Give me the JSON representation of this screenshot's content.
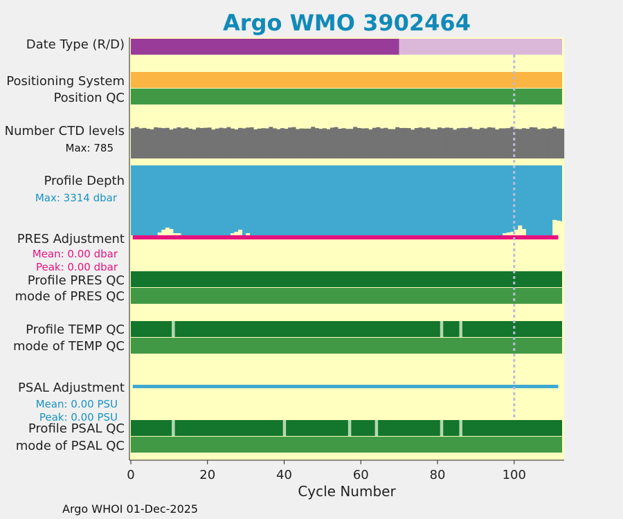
{
  "chart_data": {
    "type": "status-strips",
    "title": "Argo WMO 3902464",
    "xlabel": "Cycle Number",
    "xlim": [
      0,
      113
    ],
    "xticks": [
      0,
      20,
      40,
      60,
      80,
      100
    ],
    "marker_cycle": 100,
    "footer": "Argo WHOI 01-Dec-2025",
    "labels": {
      "date_type": "Date Type (R/D)",
      "positioning_system": "Positioning System",
      "position_qc": "Position QC",
      "ctd_levels": "Number CTD levels",
      "ctd_max": "Max: 785",
      "profile_depth": "Profile Depth",
      "depth_max": "Max: 3314 dbar",
      "pres_adjustment": "PRES Adjustment",
      "pres_mean": "Mean: 0.00 dbar",
      "pres_peak": "Peak: 0.00 dbar",
      "profile_pres_qc": "Profile PRES QC",
      "mode_pres_qc": "mode of PRES QC",
      "profile_temp_qc": "Profile TEMP QC",
      "mode_temp_qc": "mode of TEMP QC",
      "psal_adjustment": "PSAL Adjustment",
      "psal_mean": "Mean: 0.00 PSU",
      "psal_peak": "Peak: 0.00 PSU",
      "profile_psal_qc": "Profile PSAL QC",
      "mode_psal_qc": "mode of PSAL QC"
    },
    "date_type": {
      "delayed_until_cycle": 70
    },
    "ctd_levels_max": 785,
    "depth_max_dbar": 3314,
    "temp_qc_bad_cycles": [
      11,
      81,
      86
    ],
    "psal_qc_bad_cycles": [
      11,
      40,
      57,
      64,
      81,
      86
    ],
    "colors": {
      "background": "#ffffc0",
      "delayed": "#993b99",
      "realtime": "#dbb7da",
      "positioning": "#fbb543",
      "qc_good": "#419945",
      "qc_profile": "#14752c",
      "qc_bad": "#b2d8ad",
      "ctd": "#737373",
      "depth": "#41a9cf",
      "pres_line": "#e6127f",
      "psal_line": "#41a9cf",
      "marker": "#bbbbd8",
      "title": "#118ab8"
    }
  }
}
